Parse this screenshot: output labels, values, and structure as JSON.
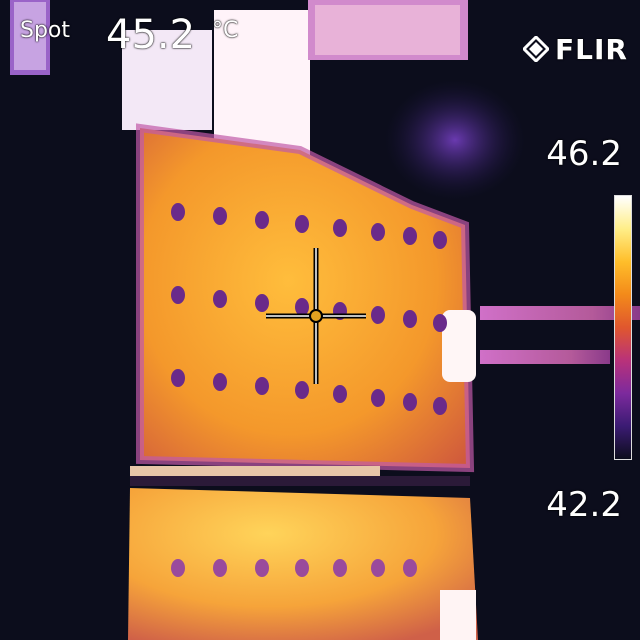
{
  "spot": {
    "label": "Spot",
    "value": "45.2",
    "unit": "°C"
  },
  "brand": {
    "name": "FLIR",
    "icon": "flir-logo-icon"
  },
  "scale": {
    "max_label": "46.2",
    "min_label": "42.2",
    "palette": [
      "#ffffff",
      "#ffee88",
      "#ffbe2a",
      "#f38a1a",
      "#e0572e",
      "#b9327a",
      "#7d2a9d",
      "#3b1b73",
      "#0c0d1c"
    ]
  },
  "crosshair": {
    "icon": "crosshair-icon",
    "center_color": "#e0a020"
  }
}
